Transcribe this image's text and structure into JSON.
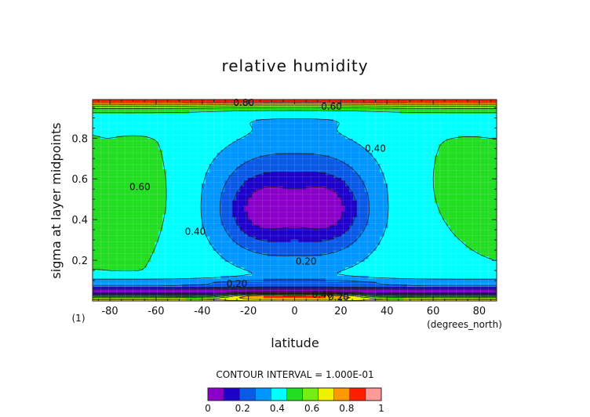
{
  "chart_data": {
    "type": "contour",
    "title": "relative humidity",
    "xlabel": "latitude",
    "xunits": "(degrees_north)",
    "ylabel": "sigma at layer midpoints",
    "panel_label": "(1)",
    "xlim": [
      -87.5,
      87.5
    ],
    "ylim": [
      0.0,
      0.99
    ],
    "xticks": [
      -80,
      -60,
      -40,
      -20,
      0,
      20,
      40,
      60,
      80
    ],
    "xtick_labels": [
      "-80",
      "-60",
      "-40",
      "-20",
      "0",
      "20",
      "40",
      "60",
      "80"
    ],
    "yticks": [
      0.2,
      0.4,
      0.6,
      0.8
    ],
    "ytick_labels": [
      "0.2",
      "0.4",
      "0.6",
      "0.8"
    ],
    "contour_interval_text": "CONTOUR INTERVAL = 1.000E-01",
    "colorbar": {
      "levels": [
        0,
        0.1,
        0.2,
        0.3,
        0.4,
        0.5,
        0.6,
        0.7,
        0.8,
        0.9,
        1.0
      ],
      "colors": [
        "#8B00C8",
        "#1E00C8",
        "#0A5AE6",
        "#0096FF",
        "#00FFFF",
        "#22DD22",
        "#77EE11",
        "#EEF200",
        "#FF9900",
        "#FF1E00",
        "#FF9A9A"
      ],
      "tick_labels": [
        "0",
        "0.2",
        "0.4",
        "0.6",
        "0.8",
        "1"
      ]
    },
    "contour_labels": [
      {
        "text": "0.80",
        "x": -22,
        "y": 0.975
      },
      {
        "text": "0.60",
        "x": 16,
        "y": 0.955
      },
      {
        "text": "0.40",
        "x": 35,
        "y": 0.75
      },
      {
        "text": "0.60",
        "x": -67,
        "y": 0.56
      },
      {
        "text": "0.40",
        "x": -43,
        "y": 0.34
      },
      {
        "text": "0.20",
        "x": 5,
        "y": 0.195
      },
      {
        "text": "0.20",
        "x": -25,
        "y": 0.085
      },
      {
        "text": "0.40",
        "x": 12,
        "y": 0.03
      },
      {
        "text": "0.20",
        "x": 19,
        "y": 0.02
      }
    ]
  }
}
